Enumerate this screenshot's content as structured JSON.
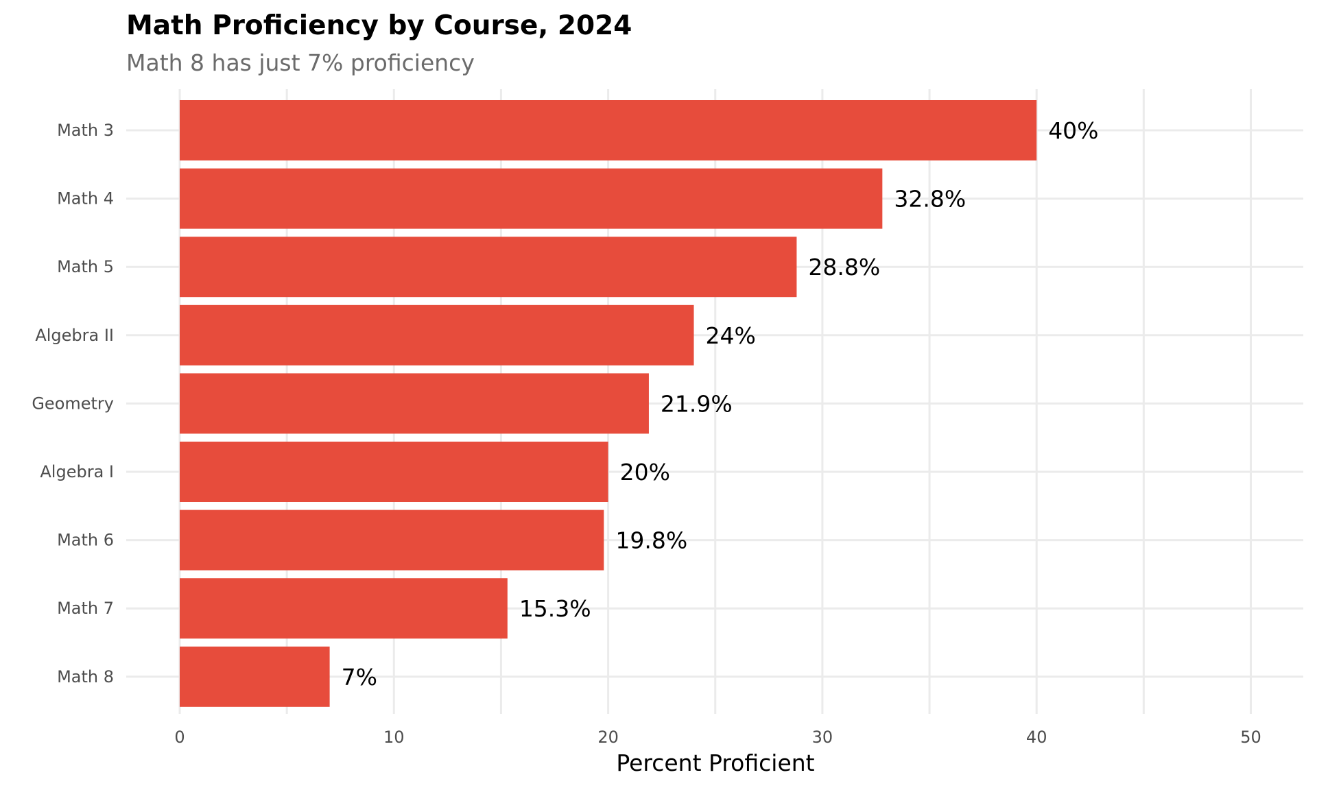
{
  "chart_data": {
    "type": "bar",
    "orientation": "horizontal",
    "title": "Math Proficiency by Course, 2024",
    "subtitle": "Math 8 has just 7% proficiency",
    "xlabel": "Percent Proficient",
    "ylabel": "",
    "categories": [
      "Math 3",
      "Math 4",
      "Math 5",
      "Algebra II",
      "Geometry",
      "Algebra I",
      "Math 6",
      "Math 7",
      "Math 8"
    ],
    "values": [
      40,
      32.8,
      28.8,
      24,
      21.9,
      20,
      19.8,
      15.3,
      7
    ],
    "data_labels": [
      "40%",
      "32.8%",
      "28.8%",
      "24%",
      "21.9%",
      "20%",
      "19.8%",
      "15.3%",
      "7%"
    ],
    "xlim": [
      0,
      52
    ],
    "xticks": [
      0,
      10,
      20,
      30,
      40,
      50
    ],
    "xtick_labels": [
      "0",
      "10",
      "20",
      "30",
      "40",
      "50"
    ],
    "grid": true,
    "legend": "none",
    "bar_color": "#e74c3c"
  }
}
